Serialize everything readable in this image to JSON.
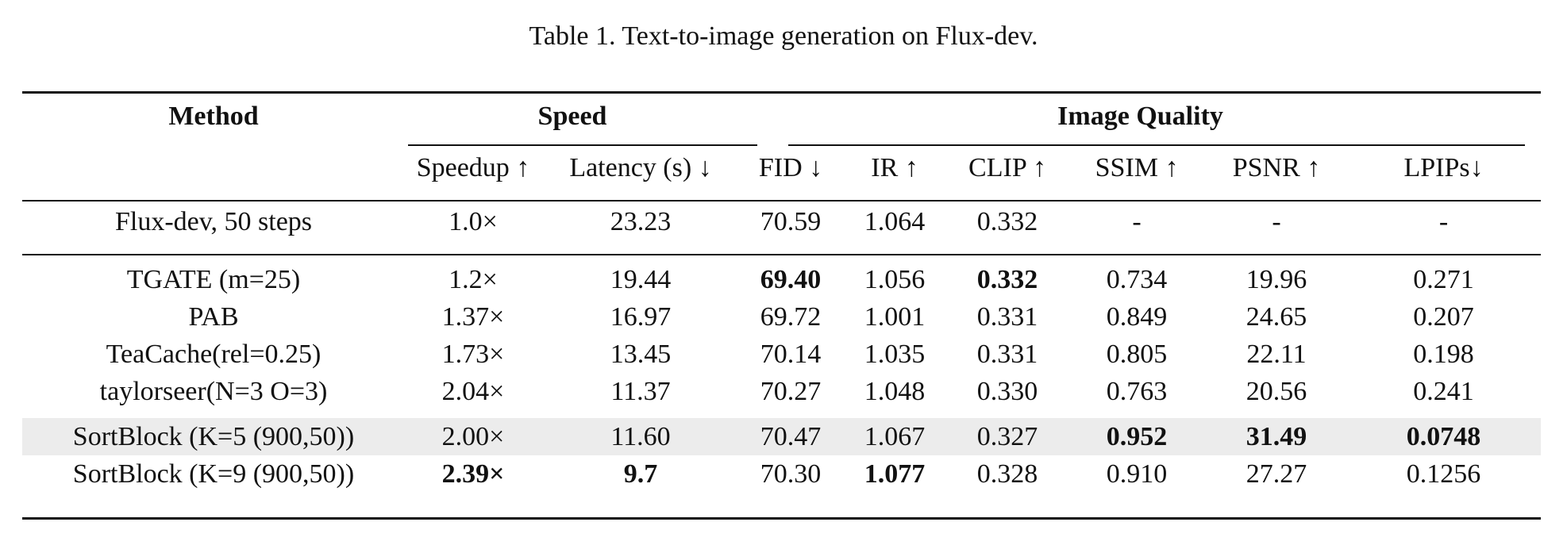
{
  "caption": "Table 1. Text-to-image generation on Flux-dev.",
  "header": {
    "method": "Method",
    "speed": "Speed",
    "image_quality": "Image Quality",
    "cols": [
      "Speedup ↑",
      "Latency (s) ↓",
      "FID ↓",
      "IR ↑",
      "CLIP ↑",
      "SSIM ↑",
      "PSNR ↑",
      "LPIPs↓"
    ]
  },
  "rows": [
    {
      "method": "Flux-dev, 50 steps",
      "cells": [
        "1.0×",
        "23.23",
        "70.59",
        "1.064",
        "0.332",
        "-",
        "-",
        "-"
      ],
      "bold": []
    },
    {
      "method": "TGATE (m=25)",
      "cells": [
        "1.2×",
        "19.44",
        "69.40",
        "1.056",
        "0.332",
        "0.734",
        "19.96",
        "0.271"
      ],
      "bold": [
        2,
        4
      ]
    },
    {
      "method": "PAB",
      "cells": [
        "1.37×",
        "16.97",
        "69.72",
        "1.001",
        "0.331",
        "0.849",
        "24.65",
        "0.207"
      ],
      "bold": []
    },
    {
      "method": "TeaCache(rel=0.25)",
      "cells": [
        "1.73×",
        "13.45",
        "70.14",
        "1.035",
        "0.331",
        "0.805",
        "22.11",
        "0.198"
      ],
      "bold": []
    },
    {
      "method": "taylorseer(N=3 O=3)",
      "cells": [
        "2.04×",
        "11.37",
        "70.27",
        "1.048",
        "0.330",
        "0.763",
        "20.56",
        "0.241"
      ],
      "bold": []
    },
    {
      "method": "SortBlock (K=5 (900,50))",
      "cells": [
        "2.00×",
        "11.60",
        "70.47",
        "1.067",
        "0.327",
        "0.952",
        "31.49",
        "0.0748"
      ],
      "bold": [
        5,
        6,
        7
      ],
      "highlight": true
    },
    {
      "method": "SortBlock (K=9 (900,50))",
      "cells": [
        "2.39×",
        "9.7",
        "70.30",
        "1.077",
        "0.328",
        "0.910",
        "27.27",
        "0.1256"
      ],
      "bold": [
        0,
        1,
        3
      ]
    }
  ]
}
